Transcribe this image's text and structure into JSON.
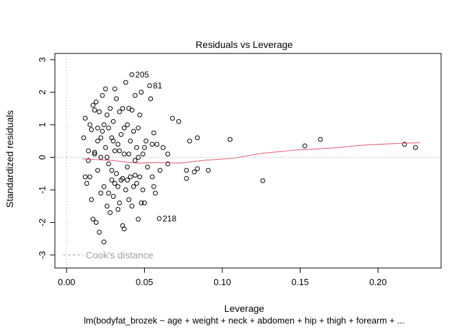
{
  "chart_data": {
    "type": "scatter",
    "title": "Residuals vs Leverage",
    "xlabel": "Leverage",
    "ylabel": "Standardized residuals",
    "subtitle": "lm(bodyfat_brozek ~ age + weight + neck + abdomen + hip + thigh + forearm + ...",
    "xlim": [
      -0.0075,
      0.2405
    ],
    "ylim": [
      -3.4,
      3.19
    ],
    "xticks": [
      {
        "value": 0,
        "label": "0.00"
      },
      {
        "value": 0.05,
        "label": "0.05"
      },
      {
        "value": 0.1,
        "label": "0.10"
      },
      {
        "value": 0.15,
        "label": "0.15"
      },
      {
        "value": 0.2,
        "label": "0.20"
      }
    ],
    "yticks": [
      -3,
      -2,
      -1,
      0,
      1,
      2,
      3
    ],
    "reference_lines": {
      "color": "#a0a0a0"
    },
    "series": [
      {
        "type": "scatter",
        "color": "#000000",
        "x": [
          0.011,
          0.012,
          0.013,
          0.014,
          0.015,
          0.015,
          0.016,
          0.016,
          0.017,
          0.017,
          0.018,
          0.018,
          0.019,
          0.019,
          0.02,
          0.02,
          0.021,
          0.021,
          0.022,
          0.022,
          0.023,
          0.023,
          0.024,
          0.024,
          0.025,
          0.025,
          0.026,
          0.026,
          0.027,
          0.027,
          0.028,
          0.028,
          0.029,
          0.029,
          0.03,
          0.03,
          0.031,
          0.031,
          0.032,
          0.032,
          0.033,
          0.033,
          0.034,
          0.034,
          0.035,
          0.035,
          0.036,
          0.036,
          0.037,
          0.037,
          0.038,
          0.038,
          0.039,
          0.039,
          0.04,
          0.04,
          0.041,
          0.041,
          0.0419,
          0.042,
          0.043,
          0.043,
          0.044,
          0.044,
          0.045,
          0.045,
          0.046,
          0.046,
          0.047,
          0.047,
          0.048,
          0.048,
          0.049,
          0.049,
          0.05,
          0.05,
          0.051,
          0.052,
          0.0533,
          0.054,
          0.055,
          0.055,
          0.056,
          0.056,
          0.057,
          0.058,
          0.0595,
          0.06,
          0.062,
          0.065,
          0.065,
          0.068,
          0.072,
          0.077,
          0.077,
          0.079,
          0.082,
          0.084,
          0.084,
          0.091,
          0.105,
          0.126,
          0.153,
          0.163,
          0.217,
          0.224,
          0.012,
          0.014,
          0.018,
          0.022,
          0.026,
          0.03,
          0.034,
          0.037,
          0.039,
          0.042,
          0.044,
          0.027,
          0.033,
          0.031,
          0.02,
          0.024,
          0.029,
          0.036,
          0.04,
          0.046
        ],
        "values": [
          0.6,
          1.2,
          -0.8,
          0.2,
          1.0,
          -0.6,
          -1.3,
          0.85,
          1.6,
          -1.9,
          0.1,
          0.15,
          -2.0,
          1.7,
          0.5,
          -0.4,
          -2.3,
          1.4,
          0.0,
          -1.1,
          0.8,
          1.9,
          -0.9,
          -2.6,
          2.1,
          0.3,
          -1.5,
          1.3,
          0.9,
          -0.2,
          1.5,
          -1.7,
          0.6,
          -0.7,
          1.1,
          -1.2,
          2.1,
          0.2,
          -0.5,
          1.8,
          -0.9,
          0.4,
          1.4,
          -1.4,
          -0.7,
          0.7,
          1.5,
          -2.1,
          -2.2,
          0.1,
          2.3,
          -1.0,
          1.0,
          -0.3,
          1.5,
          -1.3,
          0.5,
          -0.6,
          2.54,
          -1.5,
          0.8,
          -0.9,
          1.9,
          -0.1,
          -0.8,
          0.3,
          -1.9,
          0.9,
          1.3,
          -0.6,
          -1.4,
          2.0,
          0.1,
          -1.0,
          0.3,
          -1.4,
          0.5,
          -0.3,
          2.2,
          1.8,
          -0.6,
          0.4,
          -0.9,
          0.75,
          -1.1,
          0.4,
          -1.88,
          -0.4,
          0.3,
          0.1,
          -0.2,
          1.2,
          1.1,
          -0.4,
          -0.65,
          0.5,
          -0.45,
          0.6,
          -0.35,
          -0.4,
          0.55,
          -0.72,
          0.35,
          0.55,
          0.4,
          0.3,
          -0.6,
          -0.1,
          1.45,
          0.6,
          0.0,
          0.5,
          0.2,
          0.9,
          -0.7,
          1.45,
          -0.55,
          -1.1,
          -1.6,
          -0.8,
          0.9,
          1.0,
          -0.4,
          -0.65,
          0.1,
          0.0
        ]
      },
      {
        "type": "line",
        "color": "#DF536B",
        "x": [
          0.0101,
          0.0278,
          0.0454,
          0.0586,
          0.0718,
          0.0894,
          0.107,
          0.1247,
          0.1467,
          0.1687,
          0.1952,
          0.2269
        ],
        "values": [
          -0.05,
          -0.09,
          -0.18,
          -0.16,
          -0.18,
          -0.09,
          -0.03,
          0.12,
          0.22,
          0.28,
          0.39,
          0.45
        ]
      }
    ],
    "annotations": [
      {
        "text": "205",
        "x": 0.0419,
        "y": 2.54
      },
      {
        "text": "81",
        "x": 0.0533,
        "y": 2.2
      },
      {
        "text": "218",
        "x": 0.0595,
        "y": -1.88
      }
    ],
    "legend": {
      "text": "Cook's distance",
      "corner": "bottom-left",
      "color": "#a0a0a0"
    }
  }
}
